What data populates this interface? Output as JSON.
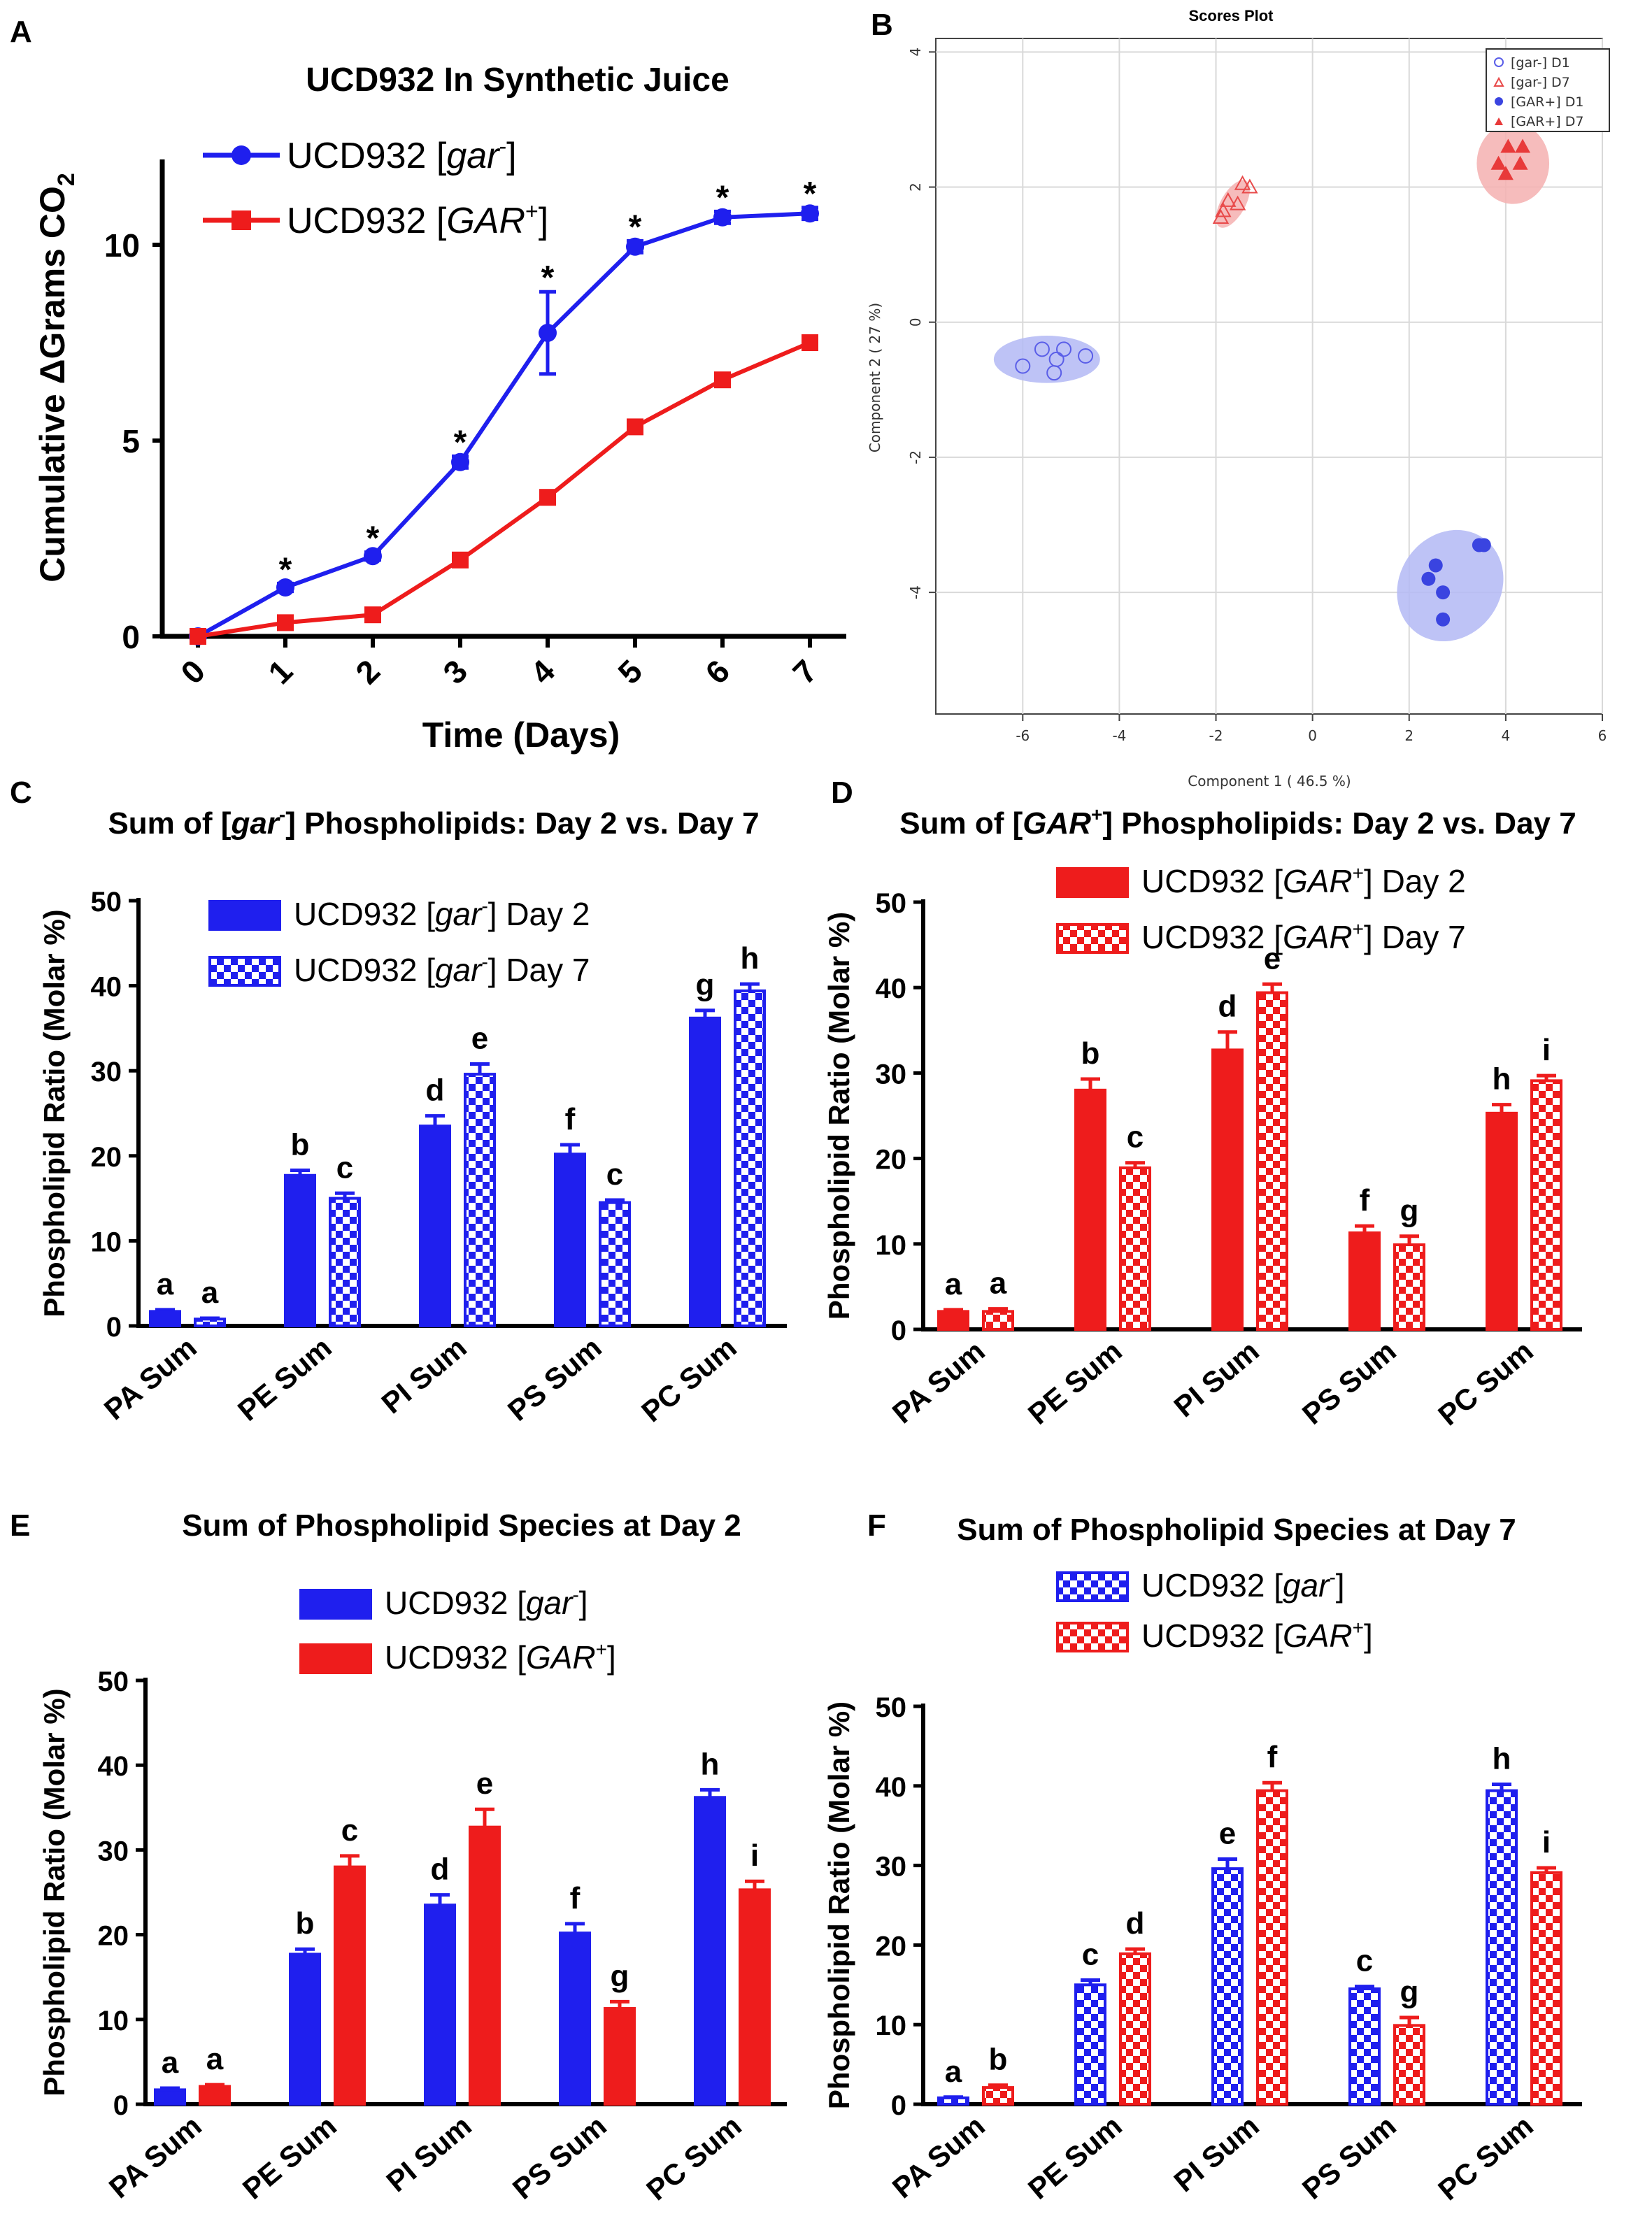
{
  "panel_labels": [
    "A",
    "B",
    "C",
    "D",
    "E",
    "F"
  ],
  "colors": {
    "blue": "#1f1fee",
    "red": "#ee1c1c",
    "blue_light": "#9aa0f2",
    "red_light": "#f4a3a3"
  },
  "chart_data": [
    {
      "id": "A",
      "type": "line",
      "title": "UCD932 In Synthetic Juice",
      "xlabel": "Time (Days)",
      "ylabel": "Cumulative ΔGrams CO2",
      "ylabel_main": "Cumulative ΔGrams CO",
      "ylabel_sub": "2",
      "x": [
        0,
        1,
        2,
        3,
        4,
        5,
        6,
        7
      ],
      "x_ticks": [
        "0",
        "1",
        "2",
        "3",
        "4",
        "5",
        "6",
        "7"
      ],
      "y_ticks": [
        "0",
        "5",
        "10"
      ],
      "ylim": [
        0,
        12
      ],
      "significance": [
        "",
        "*",
        "*",
        "*",
        "*",
        "*",
        "*",
        "*"
      ],
      "series": [
        {
          "name": "UCD932 [gar⁻]",
          "label_main": "UCD932 [",
          "label_it": "gar",
          "label_sup": "-",
          "label_end": "]",
          "color": "#1f1fee",
          "marker": "circle",
          "values": [
            0,
            1.25,
            2.05,
            4.45,
            7.75,
            9.95,
            10.7,
            10.8
          ],
          "errors": [
            0,
            0.1,
            0.1,
            0.15,
            1.05,
            0.15,
            0.15,
            0.15
          ]
        },
        {
          "name": "UCD932 [GAR⁺]",
          "label_main": "UCD932 [",
          "label_it": "GAR",
          "label_sup": "+",
          "label_end": "]",
          "color": "#ee1c1c",
          "marker": "square",
          "values": [
            0,
            0.35,
            0.55,
            1.95,
            3.55,
            5.35,
            6.55,
            7.5
          ],
          "errors": [
            0,
            0.1,
            0.1,
            0.1,
            0.15,
            0.15,
            0.15,
            0.15
          ]
        }
      ]
    },
    {
      "id": "B",
      "type": "scatter",
      "title": "Scores Plot",
      "xlabel": "Component 1 ( 46.5 %)",
      "ylabel": "Component 2 ( 27 %)",
      "xlim": [
        -7.8,
        6
      ],
      "ylim": [
        -5.8,
        4.2
      ],
      "x_ticks": [
        -6,
        -4,
        -2,
        0,
        2,
        4,
        6
      ],
      "y_ticks": [
        4,
        2,
        0,
        -2,
        -4
      ],
      "legend": [
        "[gar-] D1",
        "[gar-] D7",
        "[GAR+] D1",
        "[GAR+] D7"
      ],
      "groups": [
        {
          "name": "[gar-] D1",
          "color": "#5a5ee8",
          "marker": "open-circle",
          "ellipse": {
            "cx": -5.5,
            "cy": -0.55,
            "rx": 1.1,
            "ry": 0.35,
            "angle": 0
          },
          "points": [
            [
              -6.0,
              -0.65
            ],
            [
              -5.6,
              -0.4
            ],
            [
              -5.3,
              -0.55
            ],
            [
              -5.15,
              -0.4
            ],
            [
              -4.7,
              -0.5
            ],
            [
              -5.35,
              -0.75
            ]
          ]
        },
        {
          "name": "[gar-] D7",
          "color": "#e84a4a",
          "marker": "open-triangle",
          "ellipse": {
            "cx": -1.65,
            "cy": 1.75,
            "rx": 0.55,
            "ry": 0.18,
            "angle": -60
          },
          "points": [
            [
              -1.9,
              1.55
            ],
            [
              -1.85,
              1.65
            ],
            [
              -1.75,
              1.8
            ],
            [
              -1.55,
              1.75
            ],
            [
              -1.45,
              2.05
            ],
            [
              -1.3,
              2.0
            ]
          ]
        },
        {
          "name": "[GAR+] D1",
          "color": "#3a44e0",
          "marker": "filled-circle",
          "ellipse": {
            "cx": 2.85,
            "cy": -3.9,
            "rx": 1.2,
            "ry": 0.75,
            "angle": -55
          },
          "points": [
            [
              2.4,
              -3.8
            ],
            [
              2.55,
              -3.6
            ],
            [
              2.7,
              -4.0
            ],
            [
              2.7,
              -4.4
            ],
            [
              3.45,
              -3.3
            ],
            [
              3.55,
              -3.3
            ]
          ]
        },
        {
          "name": "[GAR+] D7",
          "color": "#e83a3a",
          "marker": "filled-triangle",
          "ellipse": {
            "cx": 4.15,
            "cy": 2.35,
            "rx": 0.75,
            "ry": 0.6,
            "angle": 0
          },
          "points": [
            [
              3.85,
              2.35
            ],
            [
              4.05,
              2.6
            ],
            [
              4.0,
              2.2
            ],
            [
              4.35,
              2.6
            ],
            [
              4.3,
              2.35
            ]
          ]
        }
      ]
    },
    {
      "id": "C",
      "type": "bar",
      "title_parts": [
        "Sum of [",
        "gar",
        "-",
        "] Phospholipids: Day 2 vs. Day 7"
      ],
      "ylabel": "Phospholipid Ratio (Molar %)",
      "categories": [
        "PA Sum",
        "PE Sum",
        "PI Sum",
        "PS Sum",
        "PC Sum"
      ],
      "ylim": [
        0,
        50
      ],
      "y_ticks": [
        "0",
        "10",
        "20",
        "30",
        "40",
        "50"
      ],
      "series": [
        {
          "name": "UCD932 [gar-] Day 2",
          "legend_parts": [
            "UCD932 [",
            "gar",
            "-",
            "] Day 2"
          ],
          "color": "#1f1fee",
          "pattern": "solid",
          "values": [
            1.7,
            17.7,
            23.5,
            20.2,
            36.2
          ],
          "errors": [
            0.2,
            0.6,
            1.2,
            1.1,
            0.9
          ],
          "letters": [
            "a",
            "b",
            "d",
            "f",
            "g"
          ]
        },
        {
          "name": "UCD932 [gar-] Day 7",
          "legend_parts": [
            "UCD932 [",
            "gar",
            "-",
            "] Day 7"
          ],
          "color": "#1f1fee",
          "pattern": "checker",
          "values": [
            0.8,
            15.0,
            29.6,
            14.5,
            39.4
          ],
          "errors": [
            0.1,
            0.6,
            1.2,
            0.3,
            0.8
          ],
          "letters": [
            "a",
            "c",
            "e",
            "c",
            "h"
          ]
        }
      ]
    },
    {
      "id": "D",
      "type": "bar",
      "title_parts": [
        "Sum of [",
        "GAR",
        "+",
        "] Phospholipids: Day 2 vs. Day 7"
      ],
      "ylabel": "Phospholipid Ratio (Molar %)",
      "categories": [
        "PA Sum",
        "PE Sum",
        "PI Sum",
        "PS Sum",
        "PC Sum"
      ],
      "ylim": [
        0,
        50
      ],
      "y_ticks": [
        "0",
        "10",
        "20",
        "30",
        "40",
        "50"
      ],
      "series": [
        {
          "name": "UCD932 [GAR+] Day 2",
          "legend_parts": [
            "UCD932 [",
            "GAR",
            "+",
            "] Day 2"
          ],
          "color": "#ee1c1c",
          "pattern": "solid",
          "values": [
            2.1,
            28.0,
            32.7,
            11.3,
            25.3
          ],
          "errors": [
            0.2,
            1.3,
            2.1,
            0.8,
            1.0
          ],
          "letters": [
            "a",
            "b",
            "d",
            "f",
            "h"
          ]
        },
        {
          "name": "UCD932 [GAR+] Day 7",
          "legend_parts": [
            "UCD932 [",
            "GAR",
            "+",
            "] Day 7"
          ],
          "color": "#ee1c1c",
          "pattern": "checker",
          "values": [
            2.1,
            18.9,
            39.4,
            9.9,
            29.1
          ],
          "errors": [
            0.3,
            0.6,
            1.0,
            1.0,
            0.6
          ],
          "letters": [
            "a",
            "c",
            "e",
            "g",
            "i"
          ]
        }
      ]
    },
    {
      "id": "E",
      "type": "bar",
      "title_parts": [
        "Sum of Phospholipid Species at Day 2"
      ],
      "ylabel": "Phospholipid Ratio (Molar %)",
      "categories": [
        "PA Sum",
        "PE Sum",
        "PI Sum",
        "PS Sum",
        "PC Sum"
      ],
      "ylim": [
        0,
        50
      ],
      "y_ticks": [
        "0",
        "10",
        "20",
        "30",
        "40",
        "50"
      ],
      "series": [
        {
          "name": "UCD932 [gar-]",
          "legend_parts": [
            "UCD932 [",
            "gar",
            "-",
            "]"
          ],
          "color": "#1f1fee",
          "pattern": "solid",
          "values": [
            1.7,
            17.7,
            23.5,
            20.2,
            36.2
          ],
          "errors": [
            0.2,
            0.6,
            1.2,
            1.1,
            0.9
          ],
          "letters": [
            "a",
            "b",
            "d",
            "f",
            "h"
          ]
        },
        {
          "name": "UCD932 [GAR+]",
          "legend_parts": [
            "UCD932 [",
            "GAR",
            "+",
            "]"
          ],
          "color": "#ee1c1c",
          "pattern": "solid",
          "values": [
            2.1,
            28.0,
            32.7,
            11.3,
            25.3
          ],
          "errors": [
            0.2,
            1.3,
            2.1,
            0.8,
            1.0
          ],
          "letters": [
            "a",
            "c",
            "e",
            "g",
            "i"
          ]
        }
      ]
    },
    {
      "id": "F",
      "type": "bar",
      "title_parts": [
        "Sum of Phospholipid Species at Day 7"
      ],
      "ylabel": "Phospholipid Ratio (Molar %)",
      "categories": [
        "PA Sum",
        "PE Sum",
        "PI Sum",
        "PS Sum",
        "PC Sum"
      ],
      "ylim": [
        0,
        50
      ],
      "y_ticks": [
        "0",
        "10",
        "20",
        "30",
        "40",
        "50"
      ],
      "series": [
        {
          "name": "UCD932 [gar-]",
          "legend_parts": [
            "UCD932 [",
            "gar",
            "-",
            "]"
          ],
          "color": "#1f1fee",
          "pattern": "checker",
          "values": [
            0.8,
            15.0,
            29.6,
            14.5,
            39.4
          ],
          "errors": [
            0.1,
            0.6,
            1.2,
            0.3,
            0.8
          ],
          "letters": [
            "a",
            "c",
            "e",
            "c",
            "h"
          ]
        },
        {
          "name": "UCD932 [GAR+]",
          "legend_parts": [
            "UCD932 [",
            "GAR",
            "+",
            "]"
          ],
          "color": "#ee1c1c",
          "pattern": "checker",
          "values": [
            2.1,
            18.9,
            39.4,
            9.9,
            29.1
          ],
          "errors": [
            0.3,
            0.6,
            1.0,
            1.0,
            0.6
          ],
          "letters": [
            "b",
            "d",
            "f",
            "g",
            "i"
          ]
        }
      ]
    }
  ]
}
